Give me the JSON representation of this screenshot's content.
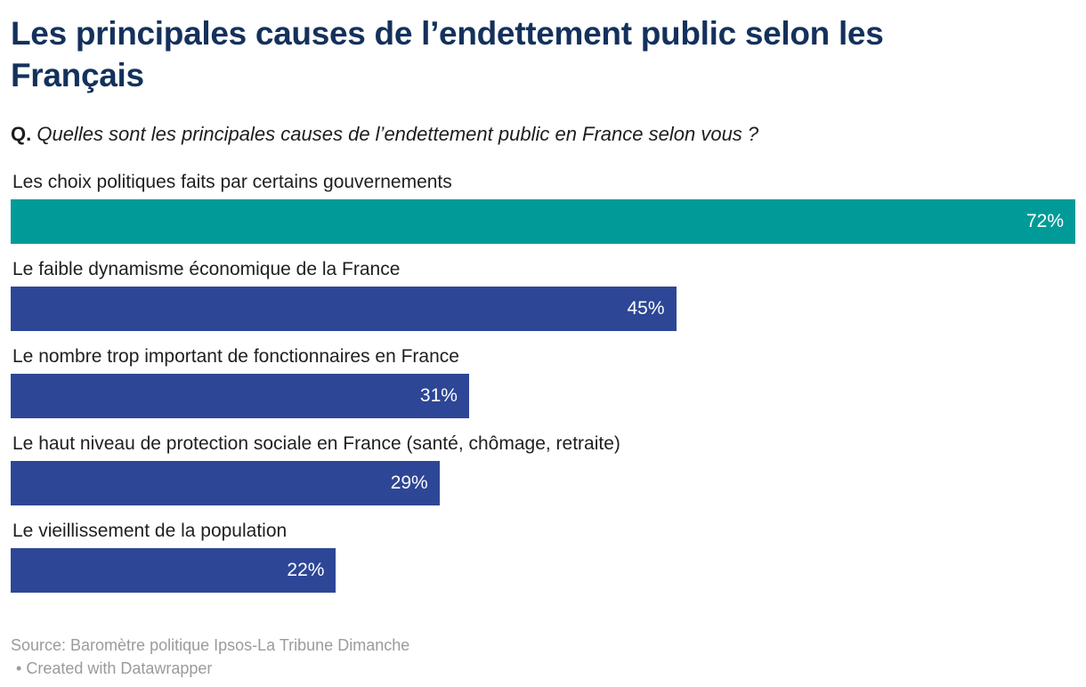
{
  "header": {
    "title_lines": [
      "Les principales causes de l’endettement public selon les",
      "Français"
    ],
    "question_prefix": "Q.",
    "question_text": " Quelles sont les principales causes de l’endettement public en France selon vous ?"
  },
  "chart_data": {
    "type": "bar",
    "orientation": "horizontal",
    "title": "Les principales causes de l’endettement public selon les Français",
    "subtitle": "Q. Quelles sont les principales causes de l’endettement public en France selon vous ?",
    "categories": [
      "Les choix politiques faits par certains gouvernements",
      "Le faible dynamisme économique de la France",
      "Le nombre trop important de fonctionnaires en France",
      "Le haut niveau de protection sociale en France (santé, chômage, retraite)",
      "Le vieillissement de la population"
    ],
    "values": [
      72,
      45,
      31,
      29,
      22
    ],
    "value_labels": [
      "72%",
      "45%",
      "31%",
      "29%",
      "22%"
    ],
    "unit": "%",
    "xlim": [
      0,
      72
    ],
    "grid": false,
    "legend": false,
    "bar_colors": [
      "#009b98",
      "#2d4696",
      "#2d4696",
      "#2d4696",
      "#2d4696"
    ]
  },
  "footer": {
    "source": "Source: Baromètre politique Ipsos-La Tribune Dimanche",
    "bullet": "•",
    "attribution": "Created with Datawrapper"
  },
  "colors": {
    "title": "#14315c",
    "body_text": "#1d1d1d",
    "highlight_bar": "#009b98",
    "default_bar": "#2d4696",
    "bar_value_text": "#ffffff",
    "footer_text": "#9b9b9b"
  }
}
